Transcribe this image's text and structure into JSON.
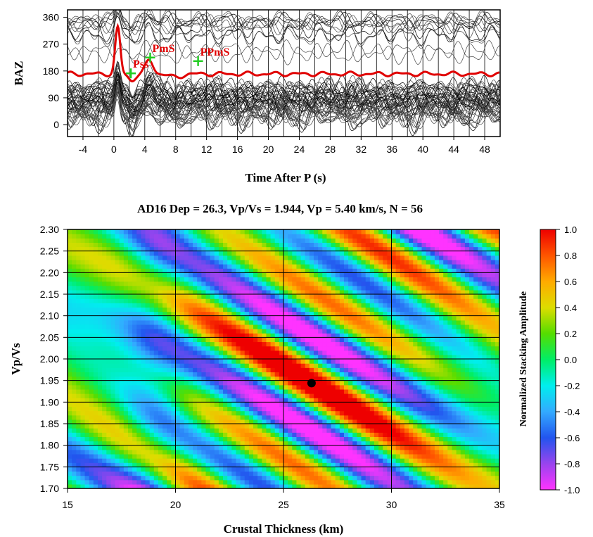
{
  "chart_data": [
    {
      "type": "line",
      "panel": "receiver-function-waveforms",
      "xlabel": "Time After P (s)",
      "ylabel": "BAZ",
      "xlim": [
        -6,
        50
      ],
      "ylim": [
        -40,
        385
      ],
      "x_ticks": [
        -4,
        0,
        4,
        8,
        12,
        16,
        20,
        24,
        28,
        32,
        36,
        40,
        44,
        48
      ],
      "y_ticks": [
        0,
        90,
        180,
        270,
        360
      ],
      "vertical_gridlines_every": 2,
      "trace_count_approx": 56,
      "stack_trace": {
        "color": "#e00000",
        "baseline_baz": 170,
        "peak_time": 0.5,
        "peak_baz": 325
      },
      "phase_markers": [
        {
          "label": "Pss",
          "time": 2.2,
          "baz": 172
        },
        {
          "label": "PmS",
          "time": 4.7,
          "baz": 225
        },
        {
          "label": "PPmS",
          "time": 10.9,
          "baz": 213
        }
      ]
    },
    {
      "type": "heatmap",
      "panel": "h-k-stacking",
      "title": "AD16  Dep = 26.3,  Vp/Vs = 1.944,  Vp = 5.40 km/s,  N = 56",
      "xlabel": "Crustal Thickness (km)",
      "ylabel": "Vp/Vs",
      "xlim": [
        15,
        35
      ],
      "ylim": [
        1.7,
        2.3
      ],
      "x_ticks": [
        15,
        20,
        25,
        30,
        35
      ],
      "y_ticks": [
        "1.70",
        "1.75",
        "1.80",
        "1.85",
        "1.90",
        "1.95",
        "2.00",
        "2.05",
        "2.10",
        "2.15",
        "2.20",
        "2.25",
        "2.30"
      ],
      "best_fit": {
        "thickness_km": 26.3,
        "vp_vs": 1.944
      },
      "colorbar": {
        "title": "Normalized Stacking Amplitude",
        "range": [
          -1.0,
          1.0
        ],
        "ticks": [
          "1.0",
          "0.8",
          "0.6",
          "0.4",
          "0.2",
          "0.0",
          "-0.2",
          "-0.4",
          "-0.6",
          "-0.8",
          "-1.0"
        ],
        "colormap": [
          "#ff33ff",
          "#9944ee",
          "#2255ee",
          "#33aaff",
          "#00eeee",
          "#00ee66",
          "#55dd00",
          "#dddd00",
          "#ffaa00",
          "#ff5500",
          "#ee0000"
        ]
      }
    }
  ]
}
